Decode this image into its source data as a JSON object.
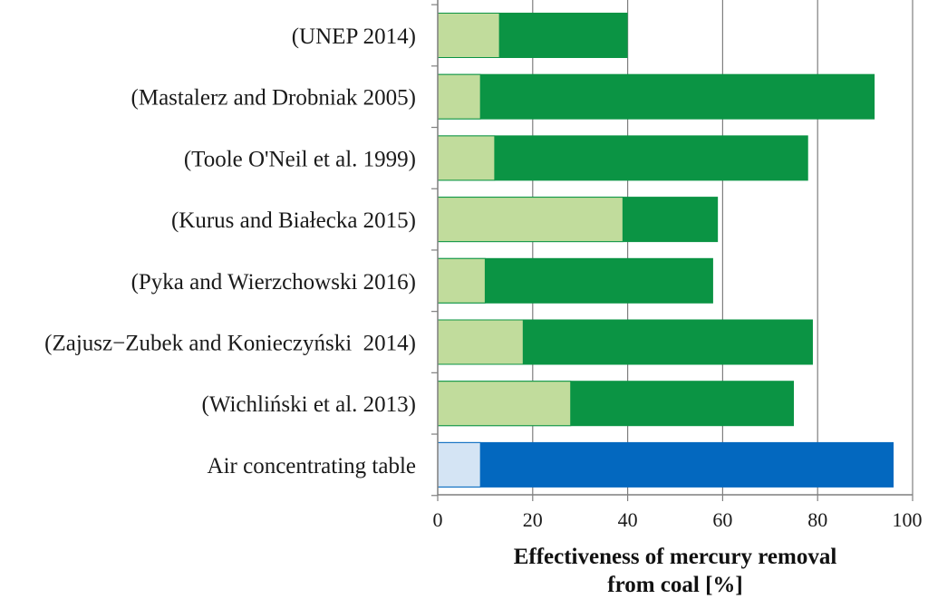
{
  "chart_data": {
    "type": "bar",
    "orientation": "horizontal",
    "stacked": true,
    "title": "",
    "xlabel_lines": [
      "Effectiveness of mercury removal",
      "from coal [%]"
    ],
    "ylabel": "",
    "xlim": [
      0,
      100
    ],
    "xticks": [
      "0",
      "20",
      "40",
      "60",
      "80",
      "100"
    ],
    "grid": "vertical",
    "legend": "none",
    "categories": [
      "(UNEP 2014)",
      "(Mastalerz and Drobniak 2005)",
      "(Toole O'Neil et al. 1999)",
      "(Kurus and Białecka 2015)",
      "(Pyka and Wierzchowski 2016)",
      "(Zajusz−Zubek and Konieczyński  2014)",
      "(Wichliński et al. 2013)",
      "Air concentrating table"
    ],
    "low_values": [
      13,
      9,
      12,
      39,
      10,
      18,
      28,
      9
    ],
    "high_values": [
      40,
      92,
      78,
      59,
      58,
      79,
      75,
      96
    ],
    "colors": {
      "literature_low": "#c1dc9c",
      "literature_high": "#0b9444",
      "table_low": "#d4e4f4",
      "table_high": "#0368bf",
      "grid": "#7f7f7f",
      "axis": "#7f7f7f"
    }
  }
}
